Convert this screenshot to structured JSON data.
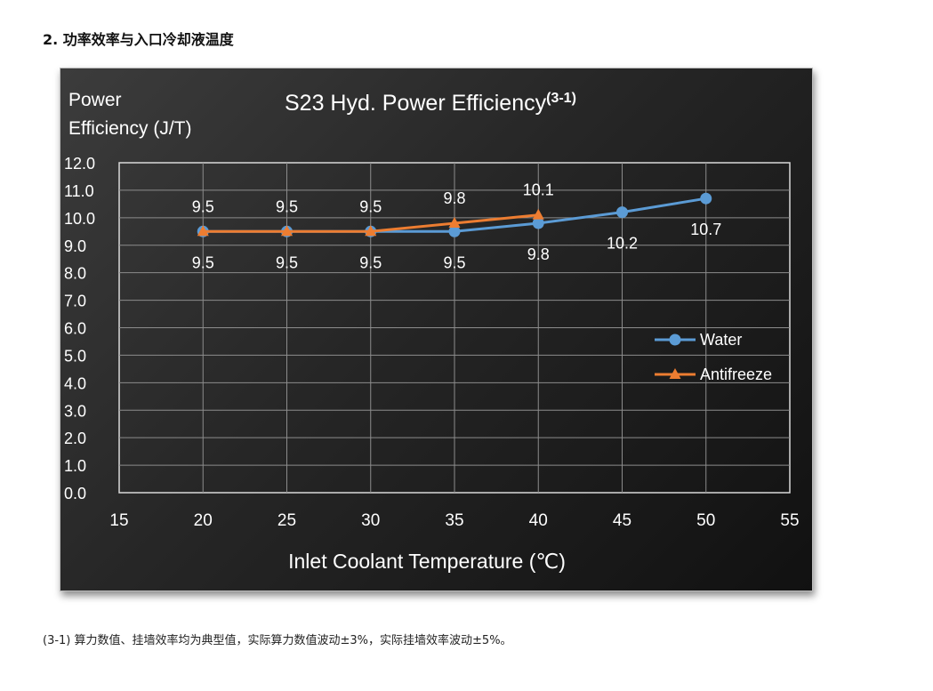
{
  "heading": "2. 功率效率与入口冷却液温度",
  "footnote": "(3-1) 算力数值、挂墙效率均为典型值，实际算力数值波动±3%，实际挂墙效率波动±5%。",
  "colors": {
    "water": "#5b9bd5",
    "antifreeze": "#ed7d31",
    "chart_background": "#262626",
    "grid": "#8c8c8c",
    "text": "#ffffff"
  },
  "chart_data": {
    "type": "line",
    "title": "S23 Hyd. Power Efficiency",
    "title_superscript": "(3-1)",
    "ylabel_line1": "Power",
    "ylabel_line2": "Efficiency (J/T)",
    "xlabel": "Inlet Coolant Temperature (℃)",
    "xlim": [
      15,
      55
    ],
    "ylim": [
      0,
      12
    ],
    "x_ticks": [
      15,
      20,
      25,
      30,
      35,
      40,
      45,
      50,
      55
    ],
    "y_ticks": [
      "0.0",
      "1.0",
      "2.0",
      "3.0",
      "4.0",
      "5.0",
      "6.0",
      "7.0",
      "8.0",
      "9.0",
      "10.0",
      "11.0",
      "12.0"
    ],
    "grid": true,
    "legend_position": "right",
    "series": [
      {
        "name": "Water",
        "marker": "circle",
        "x": [
          20,
          25,
          30,
          35,
          40,
          45,
          50
        ],
        "y": [
          9.5,
          9.5,
          9.5,
          9.5,
          9.8,
          10.2,
          10.7
        ],
        "labels": [
          "9.5",
          "9.5",
          "9.5",
          "9.5",
          "9.8",
          "10.2",
          "10.7"
        ]
      },
      {
        "name": "Antifreeze",
        "marker": "triangle",
        "x": [
          20,
          25,
          30,
          35,
          40
        ],
        "y": [
          9.5,
          9.5,
          9.5,
          9.8,
          10.1
        ],
        "labels": [
          "9.5",
          "9.5",
          "9.5",
          "9.8",
          "10.1"
        ]
      }
    ]
  }
}
